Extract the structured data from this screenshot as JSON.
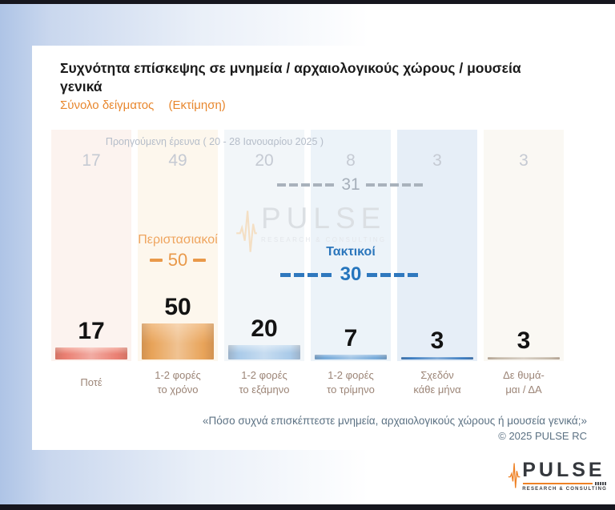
{
  "slide": {
    "title_lines": [
      "Συχνότητα επίσκεψης σε μνημεία / αρχαιολογικούς χώρους / μουσεία",
      "γενικά"
    ],
    "subtitle_sample": "Σύνολο δείγματος",
    "subtitle_estimate": "(Εκτίμηση)",
    "question": "«Πόσο συχνά επισκέπτεστε μνημεία, αρχαιολογικούς χώρους ή μουσεία γενικά;»",
    "copyright": "©  2025  PULSE RC"
  },
  "chart_data": {
    "type": "bar",
    "title": "Συχνότητα επίσκεψης σε μνημεία / αρχαιολογικούς χώρους / μουσεία γενικά",
    "subtitle": "Σύνολο δείγματος (Εκτίμηση)",
    "unit": "percent",
    "ylim": [
      0,
      50
    ],
    "grid": false,
    "legend": "none",
    "categories": [
      "Ποτέ",
      "1-2 φορές το χρόνο",
      "1-2 φορές το εξάμηνο",
      "1-2 φορές το τρίμηνο",
      "Σχεδόν κάθε μήνα",
      "Δε θυμάμαι / ΔΑ"
    ],
    "series": [
      {
        "name": "current",
        "values": [
          17,
          50,
          20,
          7,
          3,
          3
        ]
      },
      {
        "name": "Προηγούμενη έρευνα ( 20 - 28 Ιανουαρίου 2025 )",
        "values": [
          17,
          49,
          20,
          8,
          3,
          3
        ]
      }
    ],
    "annotations": {
      "previous_survey_label": "Προηγούμενη έρευνα ( 20 - 28 Ιανουαρίου 2025 )",
      "previous_regular_total": 31,
      "occasional_label": "Περιστασιακοί",
      "occasional_value": 50,
      "regular_label": "Τακτικοί",
      "regular_value": 30
    },
    "columns": [
      {
        "label_lines": [
          "Ποτέ",
          ""
        ],
        "value": 17,
        "previous": 17,
        "band_color": "#fcf3ef",
        "bar_top": "#f6b5aa",
        "bar_base": "#ea7f72"
      },
      {
        "label_lines": [
          "1-2 φορές",
          "το χρόνο"
        ],
        "value": 50,
        "previous": 49,
        "band_color": "#fdf7ed",
        "bar_top": "#f2c08a",
        "bar_base": "#e8a359"
      },
      {
        "label_lines": [
          "1-2 φορές",
          "το εξάμηνο"
        ],
        "value": 20,
        "previous": 20,
        "band_color": "#f2f6f9",
        "bar_top": "#cfe2f3",
        "bar_base": "#a9cae9"
      },
      {
        "label_lines": [
          "1-2 φορές",
          "το τρίμηνο"
        ],
        "value": 7,
        "previous": 8,
        "band_color": "#ecf3f9",
        "bar_top": "#a9c9e8",
        "bar_base": "#78abda"
      },
      {
        "label_lines": [
          "Σχεδόν",
          "κάθε μήνα"
        ],
        "value": 3,
        "previous": 3,
        "band_color": "#e6eef7",
        "bar_top": "#5e94cc",
        "bar_base": "#3c7cc0"
      },
      {
        "label_lines": [
          "Δε θυμά-",
          "μαι / ΔΑ"
        ],
        "value": 3,
        "previous": 3,
        "band_color": "#faf8f3",
        "bar_top": "#d8cfc2",
        "bar_base": "#c2b6a6"
      }
    ]
  },
  "logo": {
    "name": "PULSE",
    "tagline": "RESEARCH & CONSULTING"
  },
  "watermark": {
    "name": "PULSE",
    "tagline": "RESEARCH & CONSULTING"
  },
  "colors": {
    "accent_orange": "#e8872e",
    "accent_blue": "#2b76bc",
    "previous_gray": "#c5cad3",
    "category_brown": "#9c8577",
    "footer_gray": "#5b7183",
    "bar_strip": "#16161e"
  }
}
